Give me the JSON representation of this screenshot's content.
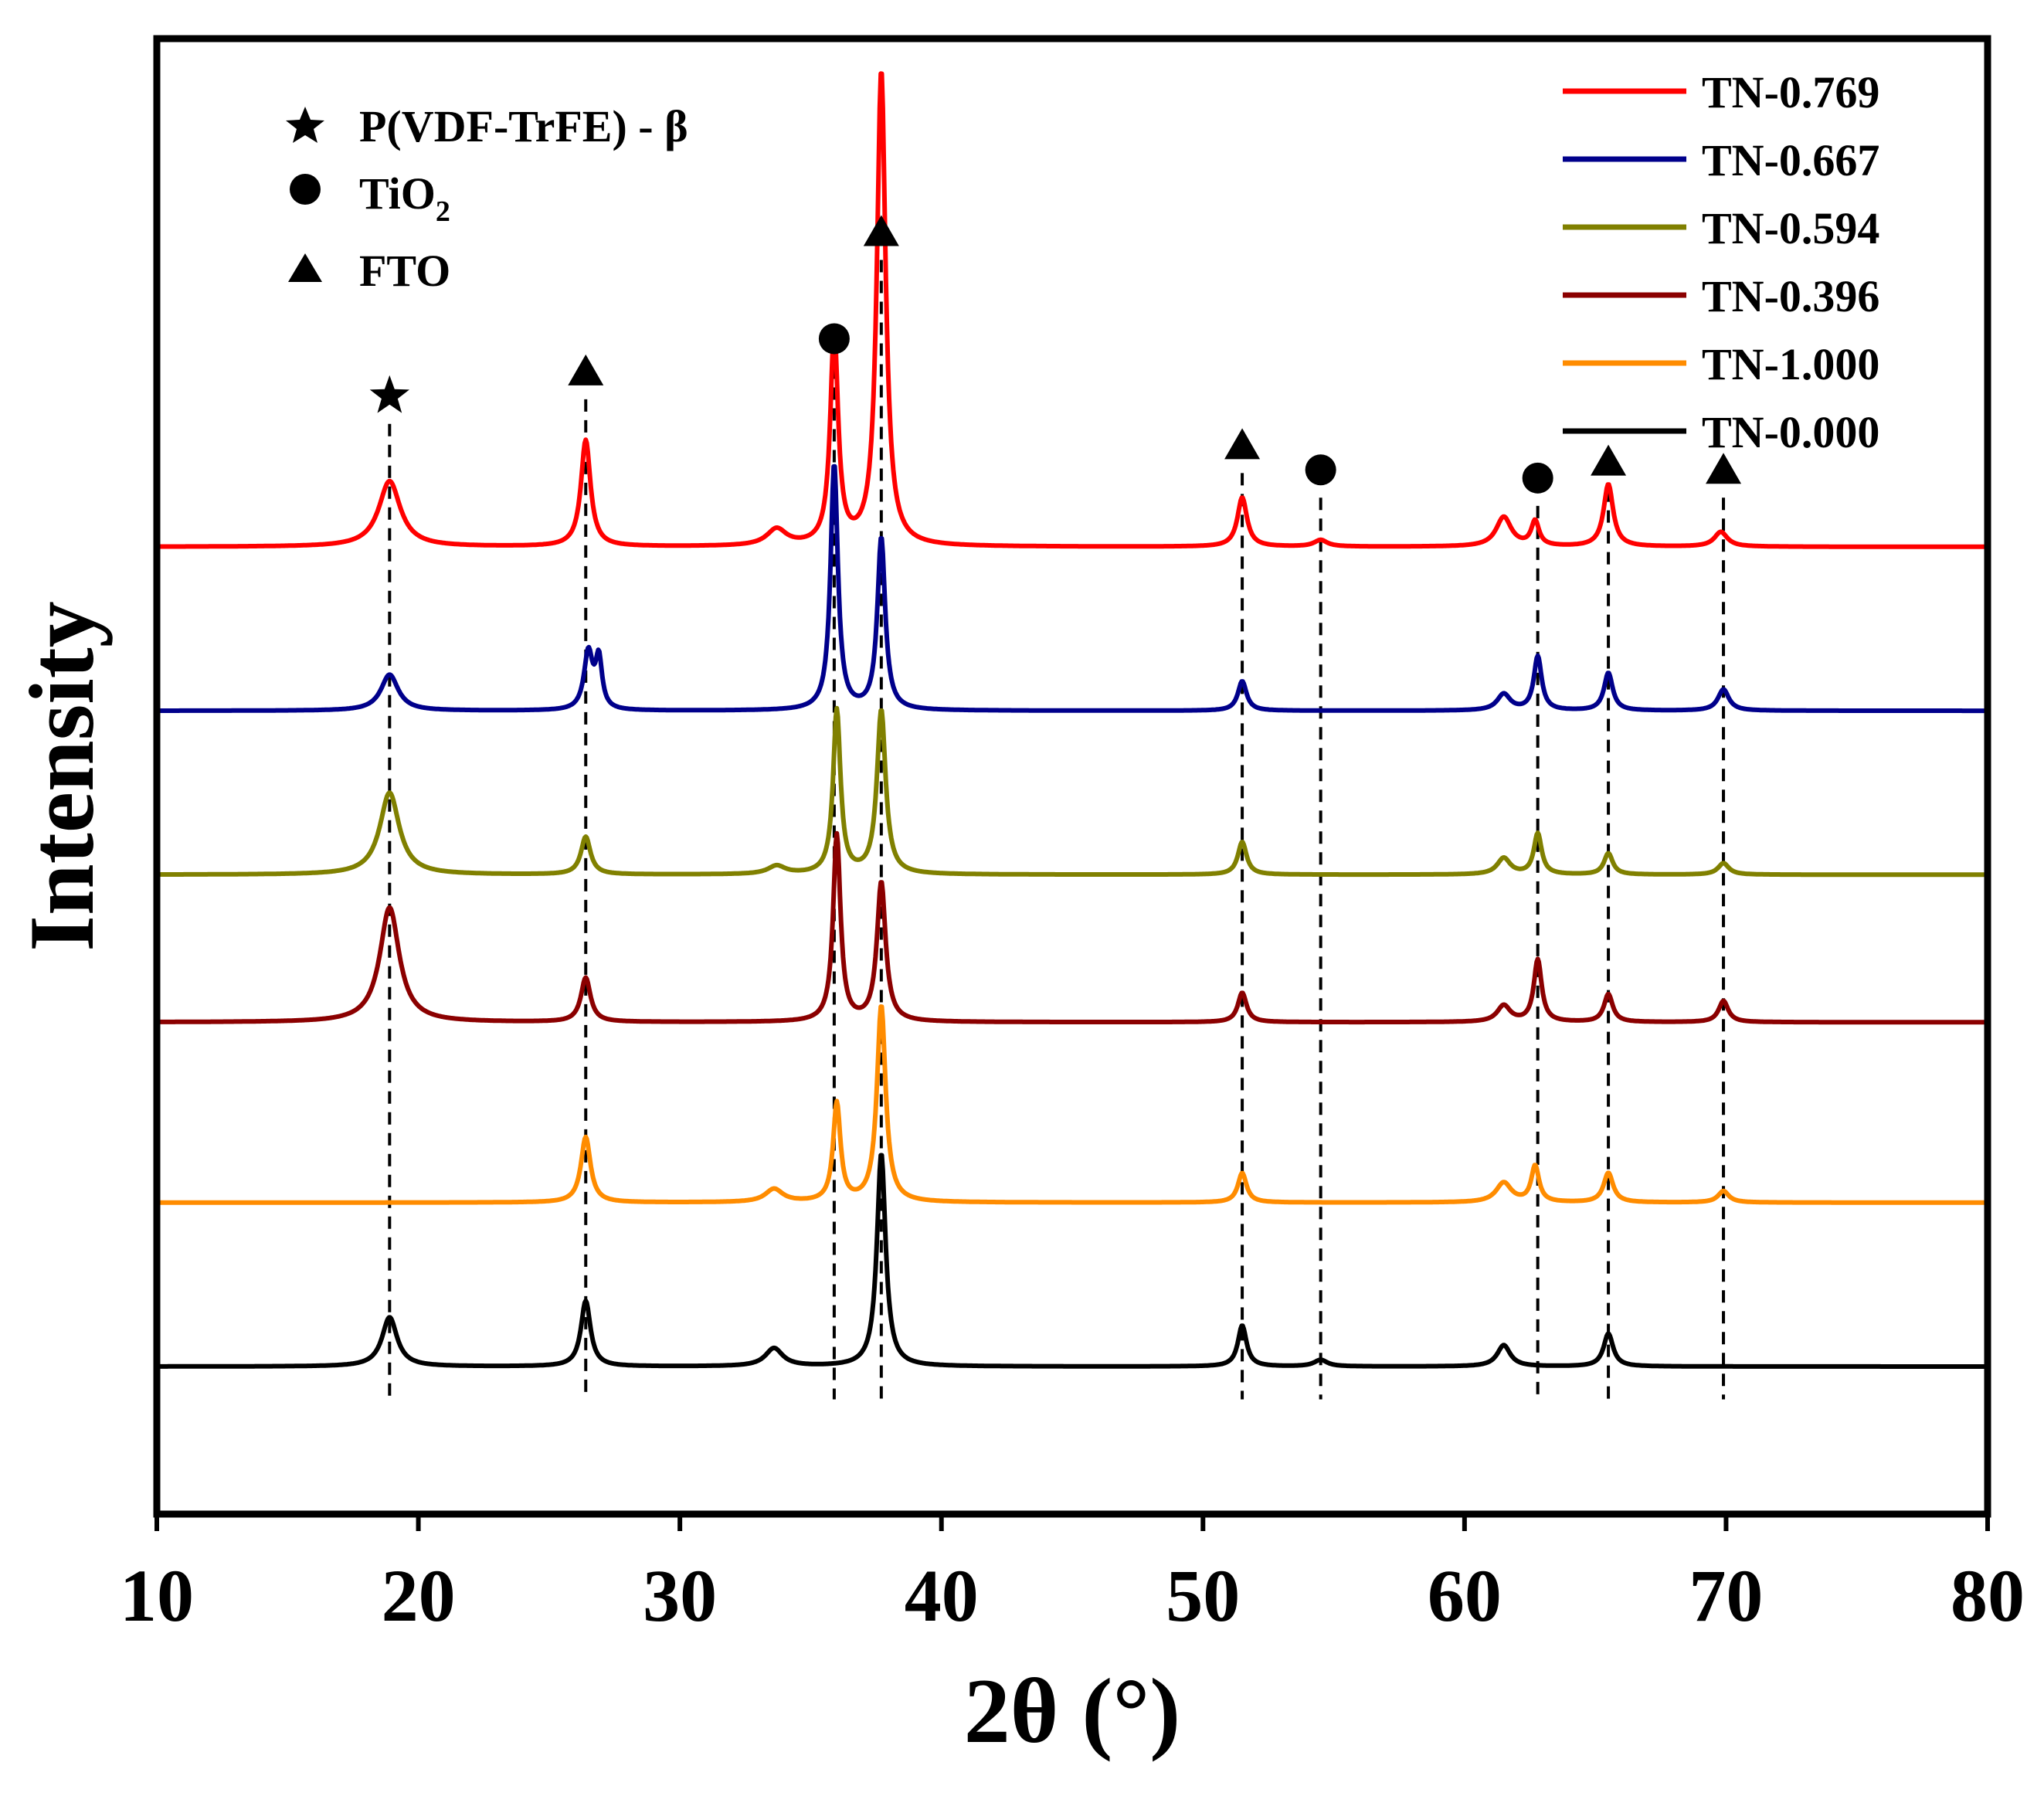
{
  "chart_data": {
    "type": "line",
    "title": "",
    "xlabel": "2θ (°)",
    "ylabel": "Intensity",
    "xlim": [
      10,
      80
    ],
    "xticks": [
      "10",
      "20",
      "30",
      "40",
      "50",
      "60",
      "70",
      "80"
    ],
    "legend_position": "top-right",
    "series": [
      {
        "name": "TN-0.769",
        "color": "#ff0000",
        "baseline": 33,
        "peaks": [
          [
            18.9,
            4,
            0.5
          ],
          [
            26.4,
            6.5,
            0.22
          ],
          [
            33.7,
            1.0,
            0.45
          ],
          [
            35.9,
            13,
            0.18
          ],
          [
            37.7,
            29,
            0.2
          ],
          [
            51.5,
            3.0,
            0.22
          ],
          [
            54.5,
            0.4,
            0.3
          ],
          [
            61.5,
            1.8,
            0.35
          ],
          [
            62.7,
            1.5,
            0.18
          ],
          [
            65.5,
            3.8,
            0.22
          ],
          [
            69.8,
            0.9,
            0.3
          ]
        ]
      },
      {
        "name": "TN-0.667",
        "color": "#00008b",
        "baseline": 23,
        "peaks": [
          [
            18.9,
            2.2,
            0.4
          ],
          [
            26.5,
            3.5,
            0.2
          ],
          [
            26.9,
            3.0,
            0.15
          ],
          [
            35.9,
            15,
            0.17
          ],
          [
            37.7,
            10.5,
            0.18
          ],
          [
            51.5,
            1.8,
            0.2
          ],
          [
            61.5,
            1.0,
            0.3
          ],
          [
            62.8,
            3.3,
            0.18
          ],
          [
            65.5,
            2.3,
            0.2
          ],
          [
            69.9,
            1.3,
            0.25
          ]
        ]
      },
      {
        "name": "TN-0.594",
        "color": "#808000",
        "baseline": 13,
        "peaks": [
          [
            18.9,
            5,
            0.45
          ],
          [
            26.4,
            2.3,
            0.22
          ],
          [
            33.7,
            0.5,
            0.4
          ],
          [
            36.0,
            10,
            0.17
          ],
          [
            37.7,
            10,
            0.2
          ],
          [
            51.5,
            2.0,
            0.2
          ],
          [
            61.5,
            1.0,
            0.3
          ],
          [
            62.8,
            2.5,
            0.18
          ],
          [
            65.5,
            1.3,
            0.2
          ],
          [
            69.9,
            0.7,
            0.25
          ]
        ]
      },
      {
        "name": "TN-0.396",
        "color": "#8b0000",
        "baseline": 4,
        "peaks": [
          [
            18.9,
            7,
            0.45
          ],
          [
            26.4,
            2.7,
            0.22
          ],
          [
            36.0,
            11.4,
            0.17
          ],
          [
            37.7,
            8.5,
            0.2
          ],
          [
            51.5,
            1.8,
            0.2
          ],
          [
            61.5,
            1.0,
            0.3
          ],
          [
            62.8,
            3.8,
            0.18
          ],
          [
            65.5,
            1.7,
            0.2
          ],
          [
            69.9,
            1.3,
            0.22
          ]
        ]
      },
      {
        "name": "TN-1.000",
        "color": "#ff8c00",
        "baseline": -7,
        "peaks": [
          [
            26.4,
            4,
            0.22
          ],
          [
            33.6,
            0.8,
            0.4
          ],
          [
            36.0,
            6,
            0.17
          ],
          [
            37.7,
            12,
            0.2
          ],
          [
            51.5,
            1.8,
            0.2
          ],
          [
            61.5,
            1.2,
            0.35
          ],
          [
            62.7,
            2.2,
            0.18
          ],
          [
            65.5,
            1.8,
            0.22
          ],
          [
            69.9,
            0.7,
            0.25
          ]
        ]
      },
      {
        "name": "TN-0.000",
        "color": "#000000",
        "baseline": -17,
        "peaks": [
          [
            18.9,
            3.0,
            0.35
          ],
          [
            26.4,
            4.0,
            0.22
          ],
          [
            33.6,
            1.1,
            0.4
          ],
          [
            37.7,
            13,
            0.2
          ],
          [
            51.5,
            2.5,
            0.2
          ],
          [
            54.5,
            0.4,
            0.3
          ],
          [
            61.5,
            1.3,
            0.3
          ],
          [
            65.5,
            2.0,
            0.22
          ]
        ]
      }
    ],
    "reference_lines": [
      {
        "x": 18.9,
        "marker": "star",
        "y_top": 40.5
      },
      {
        "x": 26.4,
        "marker": "triangle",
        "y_top": 42
      },
      {
        "x": 35.9,
        "marker": "circle",
        "y_top": 44
      },
      {
        "x": 37.7,
        "marker": "triangle",
        "y_top": 50.5
      },
      {
        "x": 51.5,
        "marker": "triangle",
        "y_top": 37.5
      },
      {
        "x": 54.5,
        "marker": "circle",
        "y_top": 36
      },
      {
        "x": 62.8,
        "marker": "circle",
        "y_top": 35.5
      },
      {
        "x": 65.5,
        "marker": "triangle",
        "y_top": 36.5
      },
      {
        "x": 69.9,
        "marker": "triangle",
        "y_top": 36
      }
    ],
    "phase_legend": [
      {
        "marker": "star",
        "label": "P(VDF-TrFE) - β"
      },
      {
        "marker": "circle",
        "label": "TiO",
        "subscript": "2"
      },
      {
        "marker": "triangle",
        "label": "FTO"
      }
    ]
  }
}
